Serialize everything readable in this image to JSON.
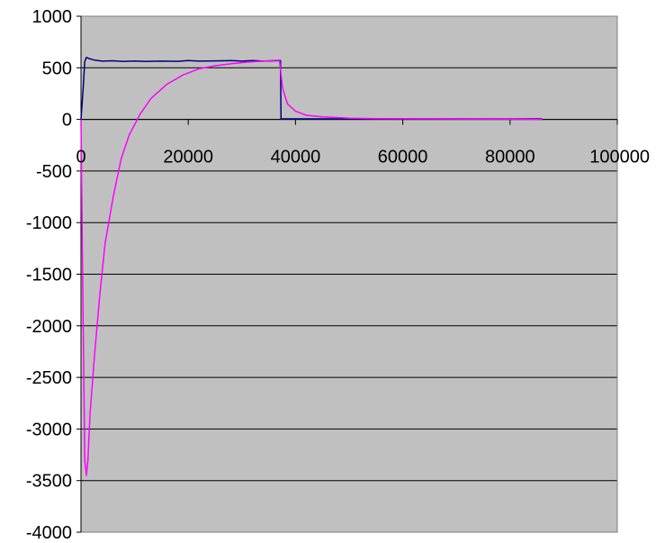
{
  "chart_data": {
    "type": "line",
    "title": "",
    "xlabel": "",
    "ylabel": "",
    "xlim": [
      0,
      100000
    ],
    "ylim": [
      -4000,
      1000
    ],
    "x_ticks": [
      "0",
      "20000",
      "40000",
      "60000",
      "80000",
      "100000"
    ],
    "y_ticks": [
      "1000",
      "500",
      "0",
      "-500",
      "-1000",
      "-1500",
      "-2000",
      "-2500",
      "-3000",
      "-3500",
      "-4000"
    ],
    "grid": "horizontal",
    "legend": "none",
    "plot_background": "#c0c0c0",
    "series": [
      {
        "color": "#000080",
        "x": [
          0,
          400,
          700,
          1000,
          1500,
          2500,
          4000,
          6000,
          8000,
          10000,
          12000,
          15000,
          18000,
          20000,
          22000,
          25000,
          28000,
          30000,
          32000,
          34000,
          36000,
          37200,
          37300,
          38000,
          40000,
          50000,
          60000,
          70000,
          80000,
          86000
        ],
        "y": [
          0,
          300,
          560,
          600,
          590,
          575,
          565,
          568,
          562,
          566,
          562,
          565,
          563,
          570,
          565,
          567,
          570,
          565,
          570,
          565,
          568,
          570,
          5,
          5,
          5,
          5,
          5,
          5,
          5,
          5
        ]
      },
      {
        "color": "#ff00ff",
        "x": [
          0,
          300,
          700,
          1000,
          1300,
          1700,
          2500,
          3500,
          4500,
          6000,
          7500,
          9000,
          11000,
          13000,
          16000,
          19000,
          22000,
          25000,
          28000,
          31000,
          34000,
          37000,
          37600,
          38500,
          40000,
          42000,
          45000,
          50000,
          55000,
          60000,
          70000,
          80000,
          86000
        ],
        "y": [
          0,
          -1500,
          -3300,
          -3450,
          -3300,
          -2850,
          -2300,
          -1700,
          -1200,
          -750,
          -380,
          -150,
          50,
          200,
          340,
          430,
          490,
          520,
          540,
          555,
          565,
          575,
          300,
          150,
          80,
          40,
          25,
          12,
          8,
          6,
          4,
          3,
          0
        ]
      }
    ]
  }
}
